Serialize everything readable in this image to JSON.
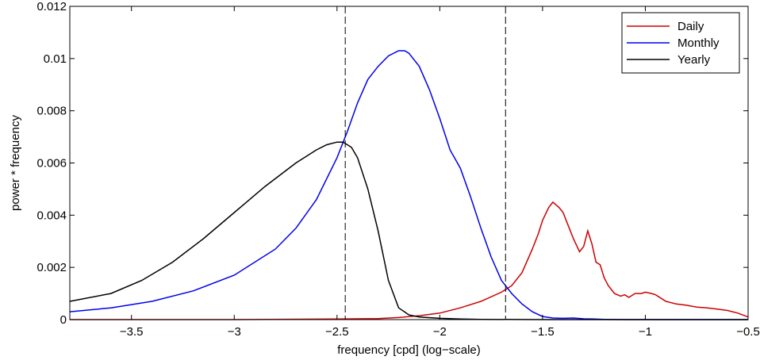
{
  "chart_data": {
    "type": "line",
    "title": "",
    "xlabel": "frequency [cpd] (log−scale)",
    "ylabel": "power * frequency",
    "xlim": [
      -3.8,
      -0.5
    ],
    "ylim": [
      0,
      0.012
    ],
    "x_ticks": [
      -3.5,
      -3,
      -2.5,
      -2,
      -1.5,
      -1,
      -0.5
    ],
    "x_tick_labels": [
      "−3.5",
      "−3",
      "−2.5",
      "−2",
      "−1.5",
      "−1",
      "−0.5"
    ],
    "y_ticks": [
      0,
      0.002,
      0.004,
      0.006,
      0.008,
      0.01,
      0.012
    ],
    "y_tick_labels": [
      "0",
      "0.002",
      "0.004",
      "0.006",
      "0.008",
      "0.01",
      "0.012"
    ],
    "grid": false,
    "legend_position": "top-right",
    "vertical_lines": [
      -2.46,
      -1.68
    ],
    "series": [
      {
        "name": "Daily",
        "color": "#cc0000",
        "x": [
          -3.8,
          -3.0,
          -2.5,
          -2.3,
          -2.2,
          -2.1,
          -2.0,
          -1.9,
          -1.8,
          -1.7,
          -1.65,
          -1.6,
          -1.55,
          -1.52,
          -1.5,
          -1.47,
          -1.45,
          -1.42,
          -1.4,
          -1.38,
          -1.35,
          -1.32,
          -1.3,
          -1.28,
          -1.26,
          -1.24,
          -1.22,
          -1.2,
          -1.18,
          -1.15,
          -1.12,
          -1.1,
          -1.08,
          -1.05,
          -1.02,
          -1.0,
          -0.97,
          -0.95,
          -0.9,
          -0.85,
          -0.8,
          -0.75,
          -0.7,
          -0.65,
          -0.6,
          -0.55,
          -0.5
        ],
        "y": [
          0.0,
          0.0,
          2e-05,
          4e-05,
          8e-05,
          0.00015,
          0.00025,
          0.00045,
          0.0007,
          0.00105,
          0.0013,
          0.0018,
          0.0027,
          0.0033,
          0.0038,
          0.0043,
          0.0045,
          0.0043,
          0.0041,
          0.0037,
          0.0031,
          0.0026,
          0.0028,
          0.0034,
          0.0029,
          0.0022,
          0.0021,
          0.0016,
          0.0013,
          0.001,
          0.0009,
          0.00095,
          0.00085,
          0.001,
          0.001,
          0.00105,
          0.001,
          0.00095,
          0.0007,
          0.0006,
          0.00055,
          0.00048,
          0.00045,
          0.0004,
          0.00035,
          0.00025,
          0.0001
        ]
      },
      {
        "name": "Monthly",
        "color": "#0000ee",
        "x": [
          -3.8,
          -3.6,
          -3.4,
          -3.2,
          -3.0,
          -2.8,
          -2.7,
          -2.6,
          -2.5,
          -2.45,
          -2.4,
          -2.35,
          -2.3,
          -2.25,
          -2.2,
          -2.17,
          -2.15,
          -2.1,
          -2.05,
          -2.0,
          -1.95,
          -1.9,
          -1.85,
          -1.8,
          -1.75,
          -1.7,
          -1.65,
          -1.6,
          -1.55,
          -1.5,
          -1.45,
          -1.4,
          -1.35,
          -1.3,
          -1.25,
          -1.2,
          -1.1,
          -1.0,
          -0.5
        ],
        "y": [
          0.0003,
          0.00045,
          0.0007,
          0.0011,
          0.0017,
          0.0027,
          0.0035,
          0.0046,
          0.0062,
          0.0072,
          0.0083,
          0.0092,
          0.0097,
          0.0101,
          0.0103,
          0.0103,
          0.0102,
          0.0097,
          0.0088,
          0.0077,
          0.0065,
          0.0058,
          0.0047,
          0.0035,
          0.0024,
          0.0015,
          0.001,
          0.0006,
          0.0003,
          0.00012,
          6e-05,
          5e-05,
          6e-05,
          3e-05,
          2e-05,
          1e-05,
          0.0,
          0.0,
          0.0
        ]
      },
      {
        "name": "Yearly",
        "color": "#000000",
        "x": [
          -3.8,
          -3.6,
          -3.45,
          -3.3,
          -3.15,
          -3.0,
          -2.85,
          -2.7,
          -2.6,
          -2.55,
          -2.5,
          -2.47,
          -2.43,
          -2.4,
          -2.35,
          -2.3,
          -2.25,
          -2.2,
          -2.15,
          -2.1,
          -2.0,
          -1.9,
          -1.8,
          -1.5,
          -0.5
        ],
        "y": [
          0.0007,
          0.001,
          0.0015,
          0.0022,
          0.0031,
          0.0041,
          0.0051,
          0.006,
          0.0065,
          0.0067,
          0.0068,
          0.0068,
          0.0066,
          0.0062,
          0.005,
          0.0034,
          0.0015,
          0.00045,
          0.00018,
          0.0001,
          5e-05,
          2e-05,
          1e-05,
          0.0,
          0.0
        ]
      }
    ]
  }
}
